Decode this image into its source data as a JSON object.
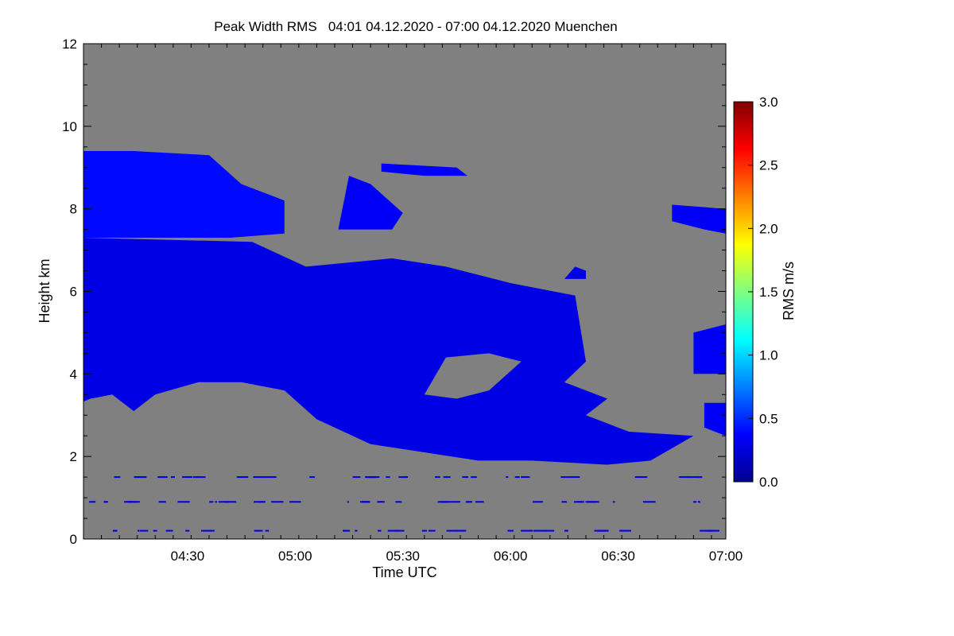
{
  "chart_data": {
    "type": "heatmap",
    "title": "Peak Width RMS   04:01 04.12.2020 - 07:00 04.12.2020 Muenchen",
    "xlabel": "Time UTC",
    "ylabel": "Height km",
    "x_range": [
      "04:01",
      "07:00"
    ],
    "x_ticks": [
      "04:30",
      "05:00",
      "05:30",
      "06:00",
      "06:30",
      "07:00"
    ],
    "ylim": [
      0,
      12
    ],
    "y_ticks": [
      0,
      2,
      4,
      6,
      8,
      10,
      12
    ],
    "background_color": "#808080",
    "colorbar": {
      "label": "RMS m/s",
      "range": [
        0.0,
        3.0
      ],
      "ticks": [
        "0.0",
        "0.5",
        "1.0",
        "1.5",
        "2.0",
        "2.5",
        "3.0"
      ],
      "colormap": "jet"
    },
    "regions": [
      {
        "name": "upper-cirrus-band",
        "polygon": [
          [
            4.0,
            7.3
          ],
          [
            4.0,
            9.4
          ],
          [
            4.25,
            9.4
          ],
          [
            4.6,
            9.3
          ],
          [
            4.75,
            8.6
          ],
          [
            4.95,
            8.2
          ],
          [
            4.95,
            7.4
          ],
          [
            4.7,
            7.3
          ]
        ],
        "value": 0.4
      },
      {
        "name": "main-cloud-body",
        "polygon": [
          [
            4.0,
            3.3
          ],
          [
            4.0,
            7.3
          ],
          [
            4.8,
            7.2
          ],
          [
            5.05,
            6.6
          ],
          [
            5.45,
            6.8
          ],
          [
            5.7,
            6.6
          ],
          [
            6.0,
            6.2
          ],
          [
            6.3,
            5.9
          ],
          [
            6.35,
            4.3
          ],
          [
            6.25,
            3.8
          ],
          [
            6.45,
            3.4
          ],
          [
            6.35,
            3.0
          ],
          [
            6.55,
            2.6
          ],
          [
            6.85,
            2.5
          ],
          [
            6.65,
            1.9
          ],
          [
            6.45,
            1.8
          ],
          [
            6.1,
            1.9
          ],
          [
            5.85,
            1.9
          ],
          [
            5.6,
            2.1
          ],
          [
            5.35,
            2.3
          ],
          [
            5.1,
            2.9
          ],
          [
            4.95,
            3.6
          ],
          [
            4.75,
            3.8
          ],
          [
            4.55,
            3.8
          ],
          [
            4.35,
            3.5
          ],
          [
            4.25,
            3.1
          ],
          [
            4.15,
            3.5
          ],
          [
            4.05,
            3.4
          ]
        ],
        "value": 0.3
      },
      {
        "name": "mid-gap-clear",
        "polygon": [
          [
            5.6,
            3.5
          ],
          [
            5.7,
            4.4
          ],
          [
            5.9,
            4.5
          ],
          [
            6.05,
            4.3
          ],
          [
            5.9,
            3.6
          ],
          [
            5.75,
            3.4
          ]
        ],
        "value": null
      },
      {
        "name": "upper-scattered-cells",
        "polygon": [
          [
            5.2,
            7.5
          ],
          [
            5.25,
            8.8
          ],
          [
            5.35,
            8.6
          ],
          [
            5.5,
            7.9
          ],
          [
            5.45,
            7.5
          ]
        ],
        "value": 0.35
      },
      {
        "name": "upper-thin-layer",
        "polygon": [
          [
            5.4,
            8.9
          ],
          [
            5.4,
            9.1
          ],
          [
            5.75,
            9.0
          ],
          [
            5.8,
            8.8
          ],
          [
            5.6,
            8.8
          ]
        ],
        "value": 0.35
      },
      {
        "name": "right-edge-high-cells",
        "polygon": [
          [
            6.75,
            7.7
          ],
          [
            6.75,
            8.1
          ],
          [
            7.0,
            8.0
          ],
          [
            7.0,
            7.4
          ],
          [
            6.9,
            7.5
          ]
        ],
        "value": 0.35
      },
      {
        "name": "right-edge-mid-cells",
        "polygon": [
          [
            6.85,
            4.0
          ],
          [
            6.85,
            5.0
          ],
          [
            7.0,
            5.2
          ],
          [
            7.0,
            4.0
          ]
        ],
        "value": 0.35
      },
      {
        "name": "right-edge-low-cells",
        "polygon": [
          [
            6.9,
            2.7
          ],
          [
            6.9,
            3.3
          ],
          [
            7.0,
            3.3
          ],
          [
            7.0,
            2.5
          ]
        ],
        "value": 0.35
      },
      {
        "name": "isolated-cell-6.3",
        "polygon": [
          [
            6.25,
            6.3
          ],
          [
            6.3,
            6.6
          ],
          [
            6.35,
            6.5
          ],
          [
            6.35,
            6.3
          ]
        ],
        "value": 0.3
      },
      {
        "name": "isolated-cell-6.2-low",
        "polygon": [
          [
            6.2,
            4.8
          ],
          [
            6.25,
            5.0
          ],
          [
            6.3,
            4.9
          ],
          [
            6.28,
            4.7
          ]
        ],
        "value": 0.3
      }
    ],
    "noise_rows_km": [
      1.5,
      0.9,
      0.2
    ]
  }
}
